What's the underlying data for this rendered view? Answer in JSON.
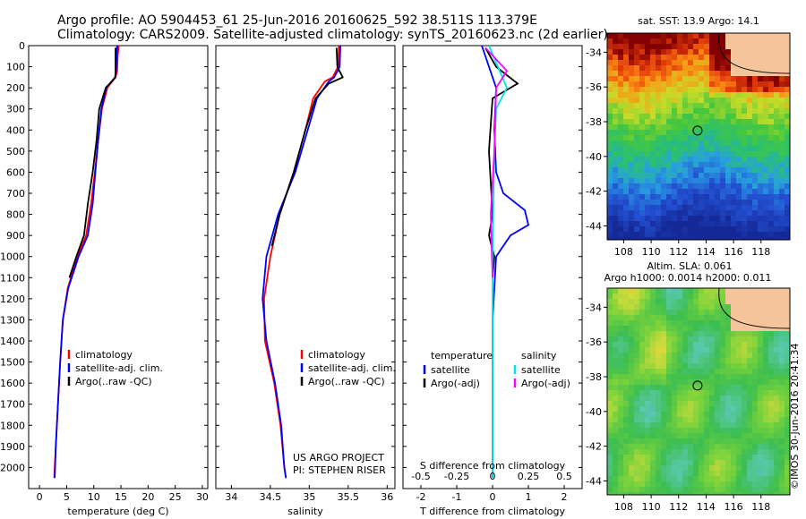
{
  "header": {
    "line1": "Argo profile: AO 5904453_61 25-Jun-2016 20160625_592 38.511S 113.379E",
    "line2": "Climatology: CARS2009. Satellite-adjusted climatology: synTS_20160623.nc (2d earlier)"
  },
  "colors": {
    "climatology": "#ff0000",
    "satellite": "#0000ff",
    "argo": "#000000",
    "salinity_satellite": "#00e5e5",
    "salinity_argo": "#ff00ff"
  },
  "chart_data": [
    {
      "id": "temperature",
      "type": "line",
      "xlabel": "temperature (deg C)",
      "ylim": [
        2100,
        0
      ],
      "xlim": [
        -2,
        31
      ],
      "xticks": [
        0,
        5,
        10,
        15,
        20,
        25,
        30
      ],
      "yticks": [
        0,
        100,
        200,
        300,
        400,
        500,
        600,
        700,
        800,
        900,
        1000,
        1100,
        1200,
        1300,
        1400,
        1500,
        1600,
        1700,
        1800,
        1900,
        2000
      ],
      "legend": [
        "climatology",
        "satellite-adj. clim.",
        "Argo(..raw -QC)"
      ],
      "series": [
        {
          "name": "climatology",
          "color": "#ff0000",
          "points": [
            [
              14.6,
              0
            ],
            [
              14.4,
              50
            ],
            [
              14.3,
              120
            ],
            [
              14.0,
              150
            ],
            [
              12.5,
              200
            ],
            [
              11.5,
              300
            ],
            [
              10.8,
              450
            ],
            [
              10.2,
              600
            ],
            [
              9.5,
              750
            ],
            [
              8.6,
              900
            ],
            [
              7.0,
              1000
            ],
            [
              5.2,
              1150
            ],
            [
              4.3,
              1300
            ],
            [
              3.8,
              1500
            ],
            [
              3.4,
              1700
            ],
            [
              3.0,
              1900
            ],
            [
              2.7,
              2050
            ]
          ]
        },
        {
          "name": "satellite-adj. clim.",
          "color": "#0000ff",
          "points": [
            [
              14.3,
              0
            ],
            [
              14.2,
              50
            ],
            [
              14.1,
              120
            ],
            [
              13.9,
              150
            ],
            [
              12.3,
              200
            ],
            [
              11.4,
              300
            ],
            [
              10.8,
              450
            ],
            [
              10.3,
              600
            ],
            [
              9.8,
              750
            ],
            [
              8.9,
              900
            ],
            [
              7.2,
              1000
            ],
            [
              5.3,
              1150
            ],
            [
              4.3,
              1300
            ],
            [
              3.8,
              1500
            ],
            [
              3.4,
              1700
            ],
            [
              3.0,
              1900
            ],
            [
              2.8,
              2050
            ]
          ]
        },
        {
          "name": "Argo(..raw -QC)",
          "color": "#000000",
          "points": [
            [
              14.0,
              10
            ],
            [
              14.0,
              80
            ],
            [
              14.0,
              150
            ],
            [
              12.2,
              200
            ],
            [
              11.0,
              300
            ],
            [
              10.5,
              450
            ],
            [
              9.8,
              600
            ],
            [
              8.9,
              750
            ],
            [
              8.2,
              900
            ],
            [
              6.8,
              1000
            ],
            [
              5.5,
              1100
            ]
          ]
        }
      ]
    },
    {
      "id": "salinity",
      "type": "line",
      "xlabel": "salinity",
      "ylim": [
        2100,
        0
      ],
      "xlim": [
        33.8,
        36.1
      ],
      "xticks": [
        34,
        34.5,
        35,
        35.5,
        36
      ],
      "xtick_labels": [
        "34",
        "34.5",
        "35",
        "35.5",
        "36"
      ],
      "legend": [
        "climatology",
        "satellite-adj. clim.",
        "Argo(..raw -QC)"
      ],
      "annotation": [
        "US ARGO PROJECT",
        "PI: STEPHEN RISER"
      ],
      "series": [
        {
          "name": "climatology",
          "color": "#ff0000",
          "points": [
            [
              35.38,
              0
            ],
            [
              35.37,
              100
            ],
            [
              35.3,
              150
            ],
            [
              35.2,
              170
            ],
            [
              35.05,
              250
            ],
            [
              34.95,
              400
            ],
            [
              34.8,
              600
            ],
            [
              34.62,
              800
            ],
            [
              34.5,
              1000
            ],
            [
              34.42,
              1200
            ],
            [
              34.43,
              1400
            ],
            [
              34.55,
              1600
            ],
            [
              34.63,
              1800
            ],
            [
              34.68,
              2000
            ],
            [
              34.7,
              2050
            ]
          ]
        },
        {
          "name": "satellite-adj. clim.",
          "color": "#0000ff",
          "points": [
            [
              35.4,
              0
            ],
            [
              35.39,
              100
            ],
            [
              35.32,
              150
            ],
            [
              35.25,
              170
            ],
            [
              35.1,
              250
            ],
            [
              34.98,
              400
            ],
            [
              34.82,
              600
            ],
            [
              34.6,
              800
            ],
            [
              34.45,
              1000
            ],
            [
              34.4,
              1200
            ],
            [
              34.45,
              1400
            ],
            [
              34.56,
              1600
            ],
            [
              34.64,
              1800
            ],
            [
              34.68,
              2000
            ],
            [
              34.7,
              2050
            ]
          ]
        },
        {
          "name": "Argo(..raw -QC)",
          "color": "#000000",
          "points": [
            [
              35.35,
              10
            ],
            [
              35.36,
              100
            ],
            [
              35.43,
              150
            ],
            [
              35.25,
              180
            ],
            [
              35.08,
              250
            ],
            [
              34.95,
              400
            ],
            [
              34.8,
              600
            ],
            [
              34.62,
              800
            ],
            [
              34.52,
              950
            ]
          ]
        }
      ]
    },
    {
      "id": "difference",
      "type": "line",
      "xlabel": "T difference from climatology",
      "xlabel_top": "S difference from climatology",
      "ylim": [
        2100,
        0
      ],
      "xlim": [
        -2.5,
        2.5
      ],
      "xticks": [
        -2,
        -1,
        0,
        1,
        2
      ],
      "xtick_labels": [
        "-2",
        "-1",
        "0",
        "1",
        "2"
      ],
      "top_ticks": [
        "-0.5",
        "-0.25",
        "0",
        "0.25",
        "0.5"
      ],
      "legend_temperature": [
        "temperature",
        "satellite",
        "Argo(-adj)"
      ],
      "legend_salinity": [
        "salinity",
        "satellite",
        "Argo(-adj)"
      ],
      "series": [
        {
          "name": "temperature satellite",
          "color": "#0000ff",
          "points": [
            [
              -0.3,
              0
            ],
            [
              -0.1,
              100
            ],
            [
              0.1,
              200
            ],
            [
              0.05,
              400
            ],
            [
              0.1,
              600
            ],
            [
              0.3,
              700
            ],
            [
              0.9,
              780
            ],
            [
              1.0,
              850
            ],
            [
              0.5,
              900
            ],
            [
              0.1,
              1000
            ],
            [
              0.0,
              1300
            ],
            [
              0.0,
              2050
            ]
          ]
        },
        {
          "name": "temperature Argo(-adj)",
          "color": "#000000",
          "points": [
            [
              -0.2,
              10
            ],
            [
              0.1,
              100
            ],
            [
              0.7,
              180
            ],
            [
              0.0,
              250
            ],
            [
              -0.1,
              500
            ],
            [
              0.0,
              800
            ],
            [
              -0.1,
              900
            ],
            [
              0.05,
              1000
            ],
            [
              0.0,
              1100
            ]
          ]
        },
        {
          "name": "salinity satellite",
          "color": "#00e5e5",
          "points": [
            [
              -0.1,
              0
            ],
            [
              0.15,
              100
            ],
            [
              0.4,
              200
            ],
            [
              0.1,
              300
            ],
            [
              0.05,
              500
            ],
            [
              0.0,
              1000
            ],
            [
              0.0,
              2050
            ]
          ]
        },
        {
          "name": "salinity Argo(-adj)",
          "color": "#ff00ff",
          "points": [
            [
              -0.2,
              10
            ],
            [
              0.4,
              120
            ],
            [
              0.1,
              200
            ],
            [
              0.05,
              500
            ],
            [
              -0.05,
              800
            ],
            [
              0.0,
              1100
            ]
          ]
        }
      ]
    },
    {
      "id": "sst_map",
      "type": "heatmap",
      "title": "sat. SST: 13.9  Argo: 14.1",
      "xlim": [
        106.8,
        120.1
      ],
      "ylim": [
        -44.8,
        -32.9
      ],
      "xticks": [
        108,
        110,
        112,
        114,
        116,
        118
      ],
      "yticks": [
        -34,
        -36,
        -38,
        -40,
        -42,
        -44
      ],
      "argo_position": [
        113.38,
        -38.51
      ]
    },
    {
      "id": "sla_map",
      "type": "heatmap",
      "title": "Altim. SLA: 0.061",
      "subtitle": "Argo h1000: 0.0014 h2000: 0.011",
      "xlim": [
        106.8,
        120.1
      ],
      "ylim": [
        -44.8,
        -32.9
      ],
      "xticks": [
        108,
        110,
        112,
        114,
        116,
        118
      ],
      "yticks": [
        -34,
        -36,
        -38,
        -40,
        -42,
        -44
      ],
      "argo_position": [
        113.38,
        -38.51
      ]
    }
  ],
  "credit": "©IMOS 30-Jun-2016 20:41:34"
}
